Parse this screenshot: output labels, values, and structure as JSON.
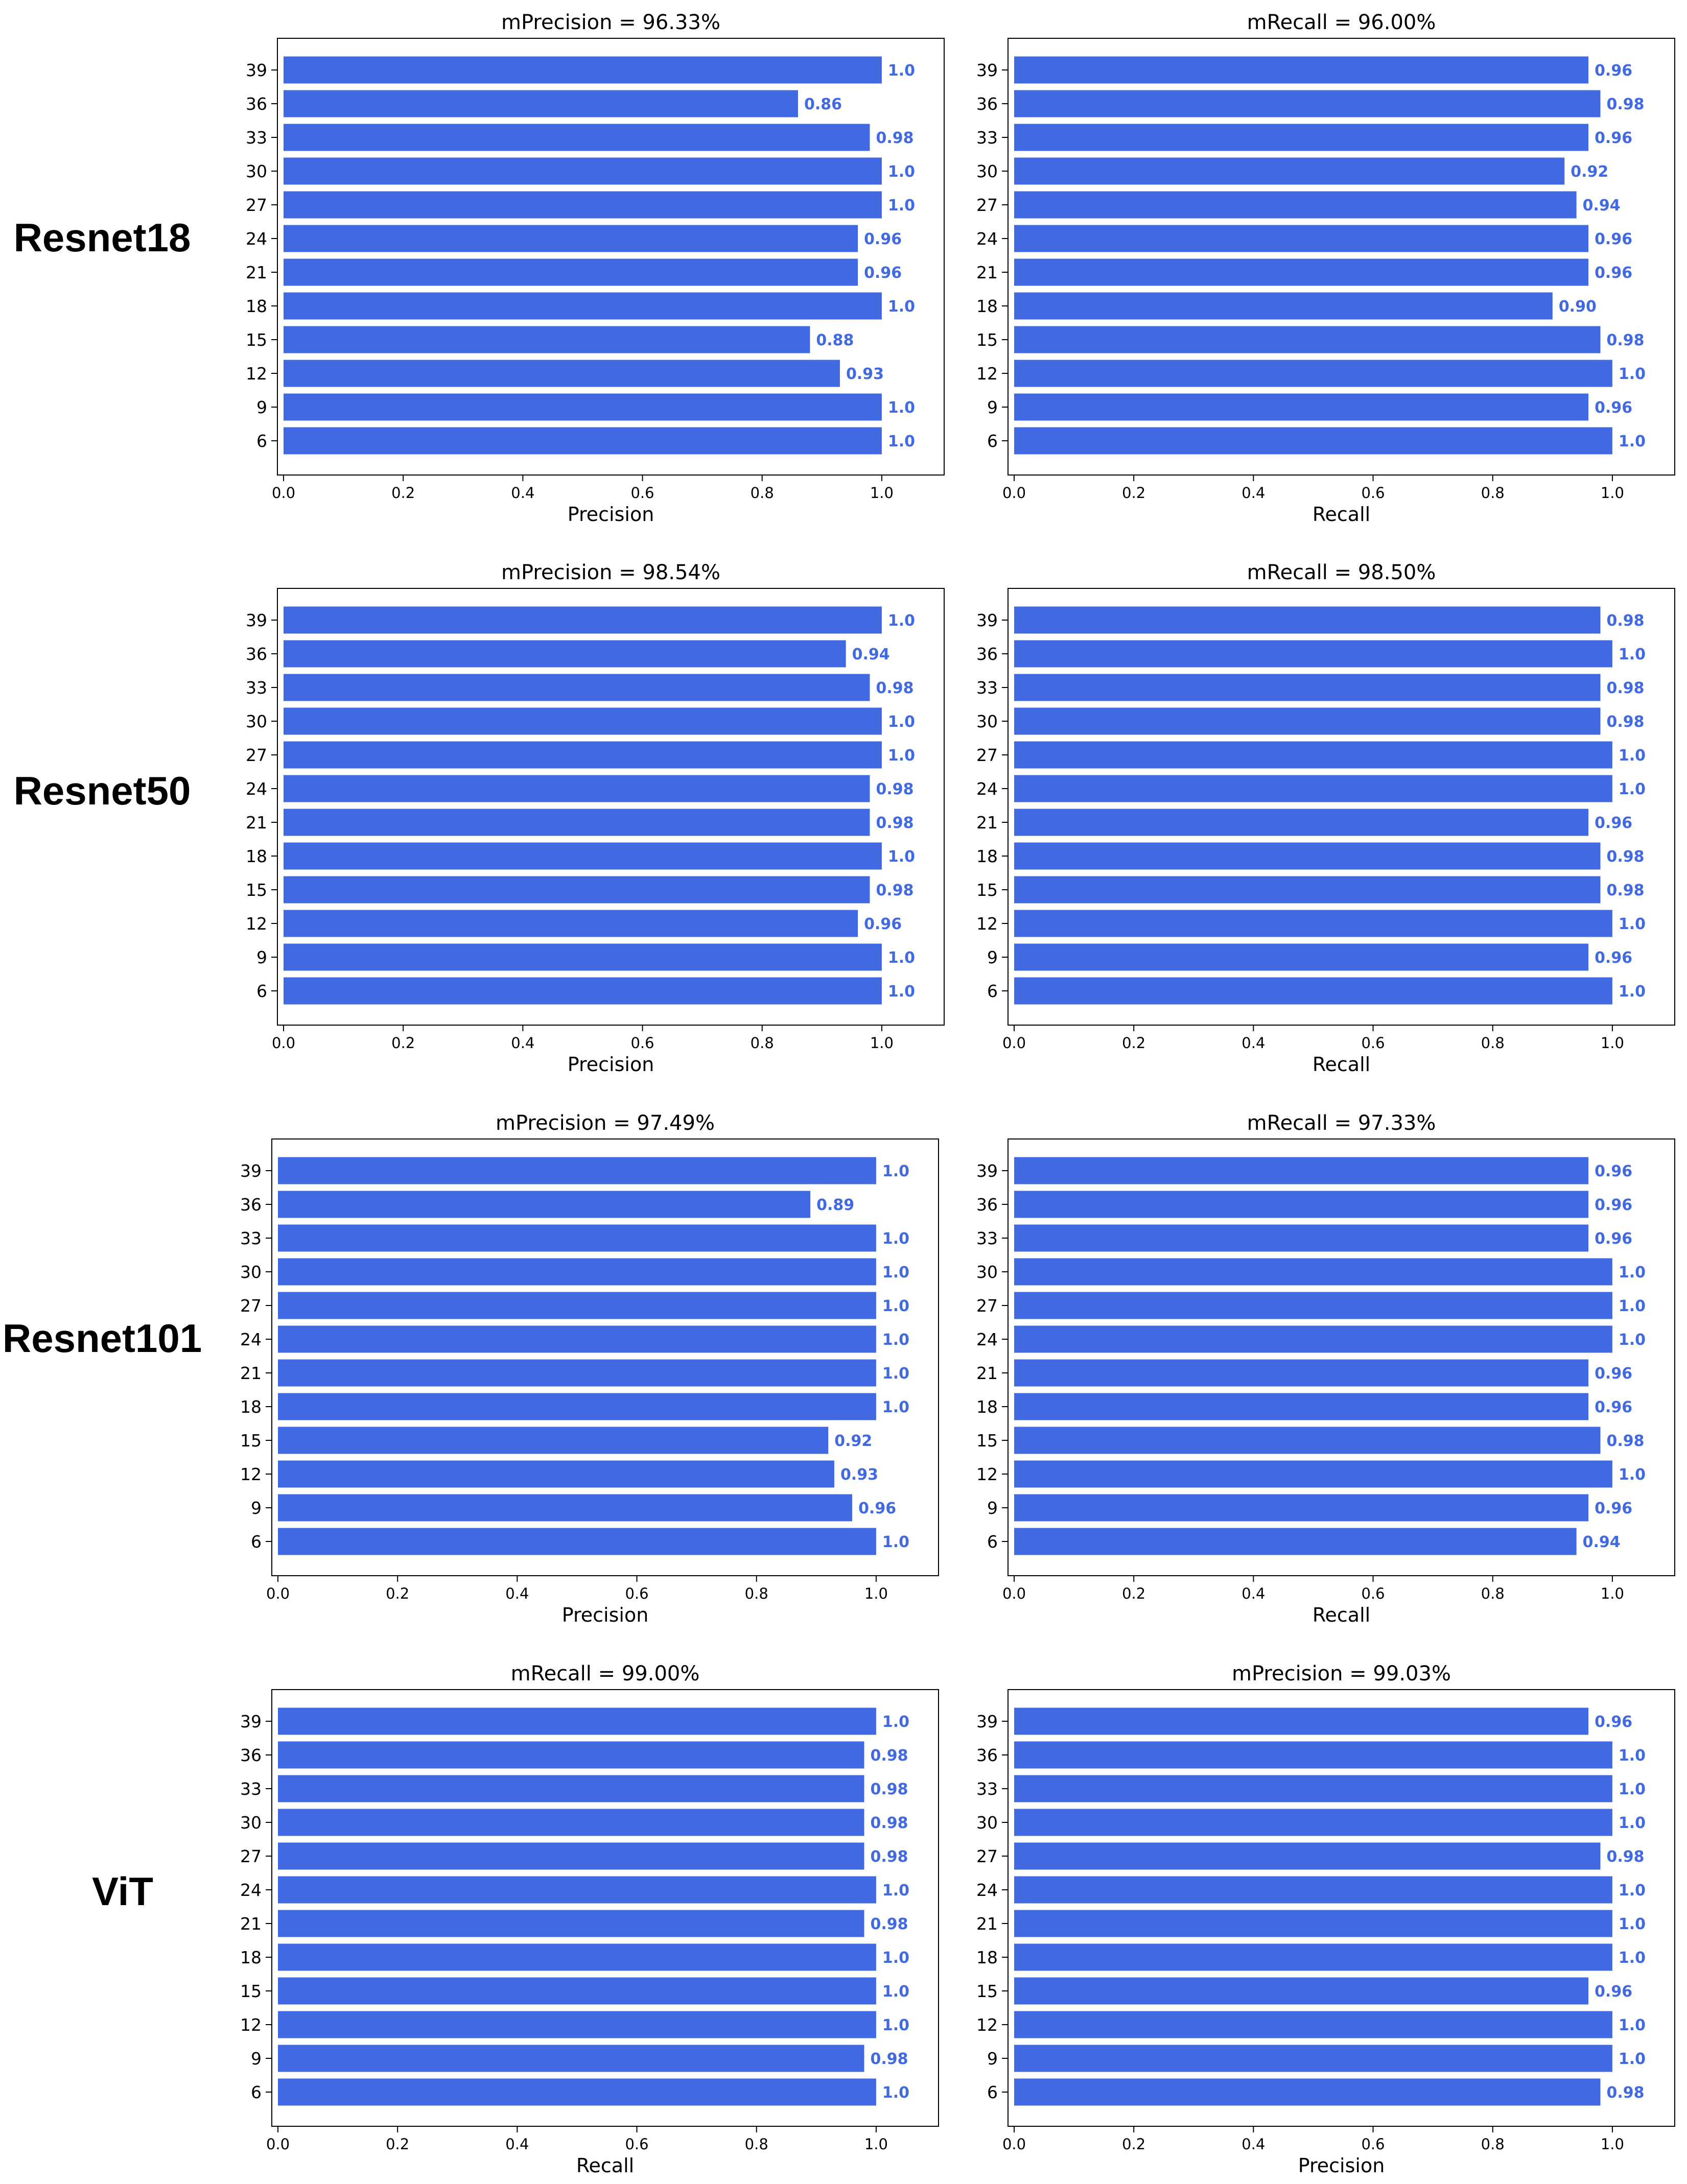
{
  "colors": {
    "bar": "#4169e1",
    "label": "#4169e1"
  },
  "categories": [
    "39",
    "36",
    "33",
    "30",
    "27",
    "24",
    "21",
    "18",
    "15",
    "12",
    "9",
    "6"
  ],
  "x_ticks": [
    "0.0",
    "0.2",
    "0.4",
    "0.6",
    "0.8",
    "1.0"
  ],
  "rows": [
    {
      "model": "Resnet18",
      "panels": [
        0,
        1
      ]
    },
    {
      "model": "Resnet50",
      "panels": [
        2,
        3
      ]
    },
    {
      "model": "Resnet101",
      "panels": [
        4,
        5
      ]
    },
    {
      "model": "ViT",
      "panels": [
        6,
        7
      ]
    }
  ],
  "chart_data": [
    {
      "type": "bar",
      "orientation": "horizontal",
      "model": "Resnet18",
      "title": "mPrecision = 96.33%",
      "xlabel": "Precision",
      "xlim": [
        0,
        1.1
      ],
      "categories": [
        "39",
        "36",
        "33",
        "30",
        "27",
        "24",
        "21",
        "18",
        "15",
        "12",
        "9",
        "6"
      ],
      "values": [
        1.0,
        0.86,
        0.98,
        1.0,
        1.0,
        0.96,
        0.96,
        1.0,
        0.88,
        0.93,
        1.0,
        1.0
      ],
      "labels": [
        "1.0",
        "0.86",
        "0.98",
        "1.0",
        "1.0",
        "0.96",
        "0.96",
        "1.0",
        "0.88",
        "0.93",
        "1.0",
        "1.0"
      ]
    },
    {
      "type": "bar",
      "orientation": "horizontal",
      "model": "Resnet18",
      "title": "mRecall = 96.00%",
      "xlabel": "Recall",
      "xlim": [
        0,
        1.1
      ],
      "categories": [
        "39",
        "36",
        "33",
        "30",
        "27",
        "24",
        "21",
        "18",
        "15",
        "12",
        "9",
        "6"
      ],
      "values": [
        0.96,
        0.98,
        0.96,
        0.92,
        0.94,
        0.96,
        0.96,
        0.9,
        0.98,
        1.0,
        0.96,
        1.0
      ],
      "labels": [
        "0.96",
        "0.98",
        "0.96",
        "0.92",
        "0.94",
        "0.96",
        "0.96",
        "0.90",
        "0.98",
        "1.0",
        "0.96",
        "1.0"
      ]
    },
    {
      "type": "bar",
      "orientation": "horizontal",
      "model": "Resnet50",
      "title": "mPrecision = 98.54%",
      "xlabel": "Precision",
      "xlim": [
        0,
        1.1
      ],
      "categories": [
        "39",
        "36",
        "33",
        "30",
        "27",
        "24",
        "21",
        "18",
        "15",
        "12",
        "9",
        "6"
      ],
      "values": [
        1.0,
        0.94,
        0.98,
        1.0,
        1.0,
        0.98,
        0.98,
        1.0,
        0.98,
        0.96,
        1.0,
        1.0
      ],
      "labels": [
        "1.0",
        "0.94",
        "0.98",
        "1.0",
        "1.0",
        "0.98",
        "0.98",
        "1.0",
        "0.98",
        "0.96",
        "1.0",
        "1.0"
      ]
    },
    {
      "type": "bar",
      "orientation": "horizontal",
      "model": "Resnet50",
      "title": "mRecall = 98.50%",
      "xlabel": "Recall",
      "xlim": [
        0,
        1.1
      ],
      "categories": [
        "39",
        "36",
        "33",
        "30",
        "27",
        "24",
        "21",
        "18",
        "15",
        "12",
        "9",
        "6"
      ],
      "values": [
        0.98,
        1.0,
        0.98,
        0.98,
        1.0,
        1.0,
        0.96,
        0.98,
        0.98,
        1.0,
        0.96,
        1.0
      ],
      "labels": [
        "0.98",
        "1.0",
        "0.98",
        "0.98",
        "1.0",
        "1.0",
        "0.96",
        "0.98",
        "0.98",
        "1.0",
        "0.96",
        "1.0"
      ]
    },
    {
      "type": "bar",
      "orientation": "horizontal",
      "model": "Resnet101",
      "title": "mPrecision = 97.49%",
      "xlabel": "Precision",
      "xlim": [
        0,
        1.1
      ],
      "categories": [
        "39",
        "36",
        "33",
        "30",
        "27",
        "24",
        "21",
        "18",
        "15",
        "12",
        "9",
        "6"
      ],
      "values": [
        1.0,
        0.89,
        1.0,
        1.0,
        1.0,
        1.0,
        1.0,
        1.0,
        0.92,
        0.93,
        0.96,
        1.0
      ],
      "labels": [
        "1.0",
        "0.89",
        "1.0",
        "1.0",
        "1.0",
        "1.0",
        "1.0",
        "1.0",
        "0.92",
        "0.93",
        "0.96",
        "1.0"
      ]
    },
    {
      "type": "bar",
      "orientation": "horizontal",
      "model": "Resnet101",
      "title": "mRecall = 97.33%",
      "xlabel": "Recall",
      "xlim": [
        0,
        1.1
      ],
      "categories": [
        "39",
        "36",
        "33",
        "30",
        "27",
        "24",
        "21",
        "18",
        "15",
        "12",
        "9",
        "6"
      ],
      "values": [
        0.96,
        0.96,
        0.96,
        1.0,
        1.0,
        1.0,
        0.96,
        0.96,
        0.98,
        1.0,
        0.96,
        0.94
      ],
      "labels": [
        "0.96",
        "0.96",
        "0.96",
        "1.0",
        "1.0",
        "1.0",
        "0.96",
        "0.96",
        "0.98",
        "1.0",
        "0.96",
        "0.94"
      ]
    },
    {
      "type": "bar",
      "orientation": "horizontal",
      "model": "ViT",
      "title": "mRecall = 99.00%",
      "xlabel": "Recall",
      "xlim": [
        0,
        1.1
      ],
      "categories": [
        "39",
        "36",
        "33",
        "30",
        "27",
        "24",
        "21",
        "18",
        "15",
        "12",
        "9",
        "6"
      ],
      "values": [
        1.0,
        0.98,
        0.98,
        0.98,
        0.98,
        1.0,
        0.98,
        1.0,
        1.0,
        1.0,
        0.98,
        1.0
      ],
      "labels": [
        "1.0",
        "0.98",
        "0.98",
        "0.98",
        "0.98",
        "1.0",
        "0.98",
        "1.0",
        "1.0",
        "1.0",
        "0.98",
        "1.0"
      ]
    },
    {
      "type": "bar",
      "orientation": "horizontal",
      "model": "ViT",
      "title": "mPrecision = 99.03%",
      "xlabel": "Precision",
      "xlim": [
        0,
        1.1
      ],
      "categories": [
        "39",
        "36",
        "33",
        "30",
        "27",
        "24",
        "21",
        "18",
        "15",
        "12",
        "9",
        "6"
      ],
      "values": [
        0.96,
        1.0,
        1.0,
        1.0,
        0.98,
        1.0,
        1.0,
        1.0,
        0.96,
        1.0,
        1.0,
        0.98
      ],
      "labels": [
        "0.96",
        "1.0",
        "1.0",
        "1.0",
        "0.98",
        "1.0",
        "1.0",
        "1.0",
        "0.96",
        "1.0",
        "1.0",
        "0.98"
      ]
    }
  ]
}
